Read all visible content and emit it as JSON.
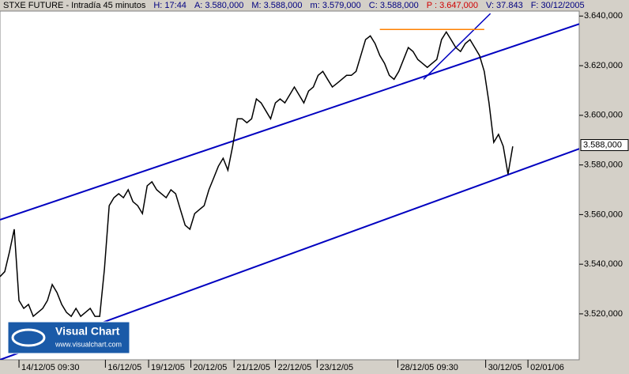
{
  "chart_data": {
    "type": "line",
    "header": [
      {
        "text": "STXE FUTURE - Intradía 45 minutos",
        "color": "#000000"
      },
      {
        "text": "H: 17:44",
        "color": "#000080"
      },
      {
        "text": "A: 3.580,000",
        "color": "#000080"
      },
      {
        "text": "M: 3.588,000",
        "color": "#000080"
      },
      {
        "text": "m: 3.579,000",
        "color": "#000080"
      },
      {
        "text": "C: 3.588,000",
        "color": "#000080"
      },
      {
        "text": "P : 3.647,000",
        "color": "#d00000"
      },
      {
        "text": "V: 37.843",
        "color": "#000080"
      },
      {
        "text": "F: 30/12/2005",
        "color": "#000080"
      }
    ],
    "series": [
      {
        "name": "STXE FUTURE",
        "color": "#000000",
        "values": [
          3535.0,
          3537.0,
          3545.0,
          3554.1,
          3525.4,
          3522.2,
          3523.8,
          3519.0,
          3520.6,
          3522.2,
          3525.4,
          3531.8,
          3528.6,
          3523.8,
          3520.6,
          3519.0,
          3522.2,
          3519.0,
          3520.6,
          3522.2,
          3519.0,
          3519.0,
          3538.1,
          3563.6,
          3566.8,
          3568.4,
          3566.8,
          3570.0,
          3565.2,
          3563.6,
          3560.4,
          3571.6,
          3573.2,
          3570.0,
          3568.4,
          3566.8,
          3570.0,
          3568.4,
          3562.0,
          3555.7,
          3554.1,
          3560.4,
          3562.0,
          3563.6,
          3570.0,
          3574.7,
          3579.5,
          3582.7,
          3577.9,
          3587.5,
          3598.6,
          3598.6,
          3597.0,
          3598.6,
          3606.6,
          3605.0,
          3601.8,
          3598.6,
          3605.0,
          3606.6,
          3605.0,
          3608.2,
          3611.4,
          3608.2,
          3605.0,
          3609.8,
          3611.4,
          3616.1,
          3617.7,
          3614.5,
          3611.4,
          3612.9,
          3614.5,
          3616.1,
          3616.1,
          3617.7,
          3624.1,
          3630.5,
          3632.0,
          3628.9,
          3624.1,
          3620.9,
          3616.1,
          3614.5,
          3617.7,
          3622.5,
          3627.3,
          3625.7,
          3622.5,
          3620.9,
          3619.3,
          3620.9,
          3622.5,
          3630.5,
          3633.6,
          3630.5,
          3627.3,
          3625.7,
          3628.9,
          3630.5,
          3627.3,
          3624.1,
          3617.7,
          3605.0,
          3589.1,
          3592.3,
          3587.5,
          3576.3,
          3587.5
        ]
      }
    ],
    "lines": [
      {
        "x": [
          0,
          122
        ],
        "y": [
          3557.9,
          3636.8
        ],
        "color": "#0000c0"
      },
      {
        "x": [
          0,
          122
        ],
        "y": [
          3501.5,
          3586.5
        ],
        "color": "#0000c0"
      },
      {
        "x": [
          89.2,
          103.3
        ],
        "y": [
          3614.5,
          3641
        ],
        "color": "#0000c0"
      },
      {
        "x": [
          80,
          102
        ],
        "y": [
          3634.6,
          3634.6
        ],
        "color": "#ff8000"
      }
    ],
    "xlim": [
      0,
      122
    ],
    "xticks": [
      {
        "value": 4,
        "label": "14/12/05 09:30"
      },
      {
        "value": 22.2,
        "label": "16/12/05"
      },
      {
        "value": 31.3,
        "label": "19/12/05"
      },
      {
        "value": 40.2,
        "label": "20/12/05"
      },
      {
        "value": 49.3,
        "label": "21/12/05"
      },
      {
        "value": 58,
        "label": "22/12/05"
      },
      {
        "value": 66.8,
        "label": "23/12/05"
      },
      {
        "value": 83.8,
        "label": "28/12/05 09:30"
      },
      {
        "value": 102.3,
        "label": "30/12/05"
      },
      {
        "value": 111.2,
        "label": "02/01/06"
      }
    ],
    "ylim": [
      3501.5,
      3642
    ],
    "yticks": [
      {
        "value": 3520,
        "label": "3.520,000"
      },
      {
        "value": 3540,
        "label": "3.540,000"
      },
      {
        "value": 3560,
        "label": "3.560,000"
      },
      {
        "value": 3580,
        "label": "3.580,000"
      },
      {
        "value": 3600,
        "label": "3.600,000"
      },
      {
        "value": 3620,
        "label": "3.620,000"
      },
      {
        "value": 3640,
        "label": "3.640,000"
      }
    ],
    "last_price": {
      "value": 3588,
      "label": "3.588,000"
    },
    "logo": {
      "title": "Visual Chart",
      "url": "www.visualchart.com"
    }
  }
}
